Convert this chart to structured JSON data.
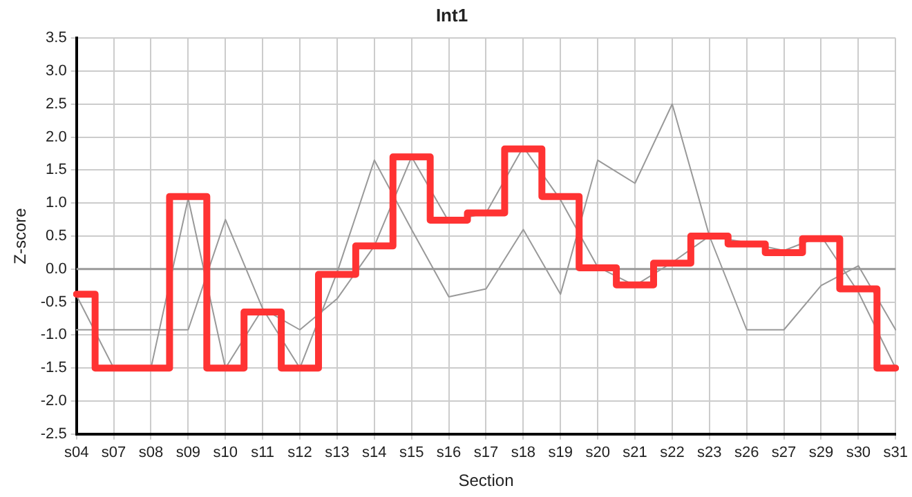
{
  "chart_data": {
    "type": "line",
    "title": "Int1",
    "xlabel": "Section",
    "ylabel": "Z-score",
    "categories": [
      "s04",
      "s07",
      "s08",
      "s09",
      "s10",
      "s11",
      "s12",
      "s13",
      "s14",
      "s15",
      "s16",
      "s17",
      "s18",
      "s19",
      "s20",
      "s21",
      "s22",
      "s23",
      "s26",
      "s27",
      "s29",
      "s30",
      "s31"
    ],
    "series": [
      {
        "type": "line",
        "color": "#999999",
        "values": [
          -0.4,
          -1.5,
          -1.5,
          1.07,
          -1.5,
          -0.6,
          -1.5,
          -0.05,
          1.65,
          0.6,
          -0.42,
          -0.3,
          0.6,
          -0.38,
          1.65,
          1.3,
          2.5,
          0.5,
          -0.92,
          -0.92,
          -0.25,
          0.05,
          -0.92
        ]
      },
      {
        "type": "line",
        "color": "#999999",
        "values": [
          -0.92,
          -0.92,
          -0.92,
          -0.92,
          0.75,
          -0.6,
          -0.92,
          -0.45,
          0.35,
          1.7,
          0.72,
          0.85,
          1.85,
          1.05,
          0.03,
          -0.25,
          0.1,
          0.5,
          0.4,
          0.28,
          0.5,
          -0.35,
          -1.5
        ]
      },
      {
        "type": "step",
        "color": "#ff3333",
        "values": [
          -0.38,
          -1.5,
          -1.5,
          1.1,
          -1.5,
          -0.65,
          -1.5,
          -0.08,
          0.35,
          1.7,
          0.74,
          0.85,
          1.82,
          1.1,
          0.02,
          -0.24,
          0.09,
          0.5,
          0.38,
          0.25,
          0.46,
          -0.3,
          -1.5
        ]
      }
    ],
    "ylim": [
      -2.5,
      3.5
    ],
    "yticks": [
      -2.5,
      {
        "value": -2,
        "label": "-2.0"
      },
      -1.5,
      {
        "value": -1,
        "label": "-1.0"
      },
      -0.5,
      {
        "value": 0,
        "label": "0.0"
      },
      0.5,
      {
        "value": 1,
        "label": "1.0"
      },
      1.5,
      {
        "value": 2,
        "label": "2.0"
      },
      2.5,
      {
        "value": 3,
        "label": "3.0"
      },
      3.5
    ],
    "ref_lines": [
      {
        "axis": "y",
        "value": 0,
        "color": "#999999"
      }
    ],
    "grid": true,
    "legend": false,
    "marker": "none",
    "line_style": "solid"
  }
}
